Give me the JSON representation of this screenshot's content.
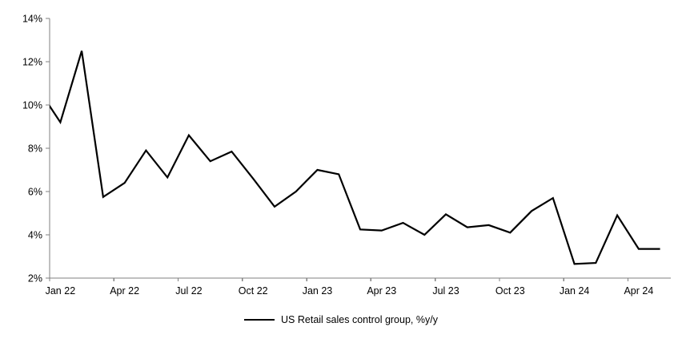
{
  "chart_data": {
    "type": "line",
    "title": "",
    "legend_entries": [
      "US Retail sales control group, %y/y"
    ],
    "legend_position": "bottom-center",
    "grid": "off",
    "background": "#ffffff",
    "line_color": "#000000",
    "axis_color": "#808080",
    "y_axis": {
      "min": 2,
      "max": 14,
      "step": 2,
      "unit": "%"
    },
    "y_tick_labels": [
      "14%",
      "12%",
      "10%",
      "8%",
      "6%",
      "4%",
      "2%"
    ],
    "x_tick_labels": [
      "Jan 22",
      "Apr 22",
      "Jul 22",
      "Oct 22",
      "Jan 23",
      "Apr 23",
      "Jul 23",
      "Oct 23",
      "Jan 24",
      "Apr 24"
    ],
    "x_tick_interval_months": 3,
    "series": [
      {
        "name": "US Retail sales control group, %y/y",
        "color": "#000000",
        "offplot_lead_point": {
          "label": "Dec 21",
          "value": 10.7
        },
        "months": [
          "Jan 22",
          "Feb 22",
          "Mar 22",
          "Apr 22",
          "May 22",
          "Jun 22",
          "Jul 22",
          "Aug 22",
          "Sep 22",
          "Oct 22",
          "Nov 22",
          "Dec 22",
          "Jan 23",
          "Feb 23",
          "Mar 23",
          "Apr 23",
          "May 23",
          "Jun 23",
          "Jul 23",
          "Aug 23",
          "Sep 23",
          "Oct 23",
          "Nov 23",
          "Dec 23",
          "Jan 24",
          "Feb 24",
          "Mar 24",
          "Apr 24",
          "May 24"
        ],
        "values": [
          9.2,
          12.5,
          5.75,
          6.4,
          7.9,
          6.65,
          8.6,
          7.4,
          7.85,
          6.6,
          5.3,
          6.0,
          7.0,
          6.8,
          4.25,
          4.2,
          4.55,
          4.0,
          4.95,
          4.35,
          4.45,
          4.1,
          5.1,
          5.7,
          2.65,
          2.7,
          4.9,
          3.35,
          3.35
        ]
      }
    ]
  }
}
